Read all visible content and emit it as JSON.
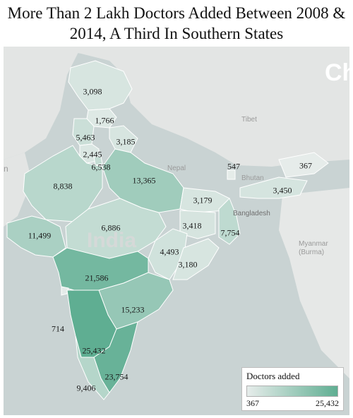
{
  "title": "More Than 2 Lakh Doctors Added Between 2008 & 2014, A Third In Southern States",
  "basemap_labels": {
    "china": "Ch",
    "tibet": "Tibet",
    "nepal": "Nepal",
    "bhutan": "Bhutan",
    "bangladesh": "Bangladesh",
    "myanmar_1": "Myanmar",
    "myanmar_2": "(Burma)",
    "india": "India",
    "left_edge": "n"
  },
  "legend": {
    "title": "Doctors added",
    "min": "367",
    "max": "25,432",
    "color_low": "#e6ecea",
    "color_high": "#5fae92"
  },
  "regions": [
    {
      "id": "jammu-kashmir",
      "label": "3,098",
      "value": 3098
    },
    {
      "id": "himachal-pradesh",
      "label": "1,766",
      "value": 1766
    },
    {
      "id": "punjab",
      "label": "5,463",
      "value": 5463
    },
    {
      "id": "uttarakhand",
      "label": "3,185",
      "value": 3185
    },
    {
      "id": "haryana",
      "label": "2,445",
      "value": 2445
    },
    {
      "id": "delhi",
      "label": "6,538",
      "value": 6538
    },
    {
      "id": "sikkim",
      "label": "547",
      "value": 547
    },
    {
      "id": "arunachal-pradesh",
      "label": "367",
      "value": 367
    },
    {
      "id": "rajasthan",
      "label": "8,838",
      "value": 8838
    },
    {
      "id": "uttar-pradesh",
      "label": "13,365",
      "value": 13365
    },
    {
      "id": "bihar",
      "label": "3,179",
      "value": 3179
    },
    {
      "id": "assam",
      "label": "3,450",
      "value": 3450
    },
    {
      "id": "gujarat",
      "label": "11,499",
      "value": 11499
    },
    {
      "id": "madhya-pradesh",
      "label": "6,886",
      "value": 6886
    },
    {
      "id": "jharkhand",
      "label": "3,418",
      "value": 3418
    },
    {
      "id": "west-bengal",
      "label": "7,754",
      "value": 7754
    },
    {
      "id": "chhattisgarh",
      "label": "4,493",
      "value": 4493
    },
    {
      "id": "odisha",
      "label": "3,180",
      "value": 3180
    },
    {
      "id": "maharashtra",
      "label": "21,586",
      "value": 21586
    },
    {
      "id": "andhra-pradesh",
      "label": "15,233",
      "value": 15233
    },
    {
      "id": "goa",
      "label": "714",
      "value": 714
    },
    {
      "id": "karnataka",
      "label": "25,432",
      "value": 25432
    },
    {
      "id": "tamil-nadu",
      "label": "23,754",
      "value": 23754
    },
    {
      "id": "kerala",
      "label": "9,406",
      "value": 9406
    }
  ]
}
